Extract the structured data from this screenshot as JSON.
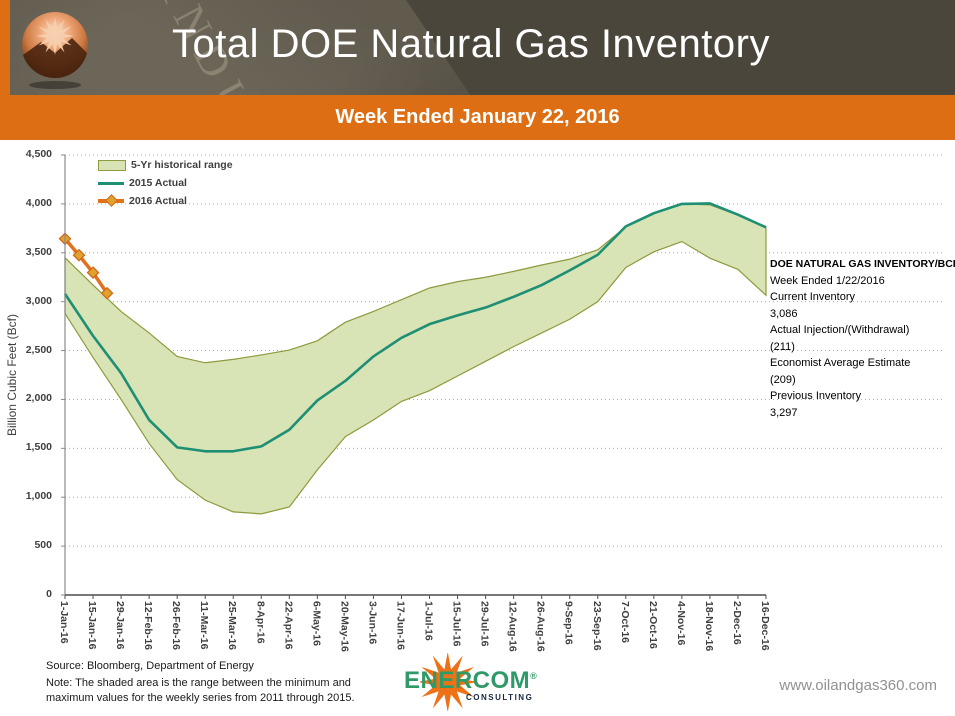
{
  "header": {
    "title": "Total DOE Natural Gas Inventory",
    "watermark": "INDUSTRY"
  },
  "subtitle_bar": {
    "text": "Week Ended January 22, 2016"
  },
  "chart_data": {
    "type": "area",
    "title": "Total DOE Natural Gas Inventory",
    "xlabel": "",
    "ylabel": "Billion Cubic Feet (Bcf)",
    "ylim": [
      0,
      4500
    ],
    "y_tick_step": 500,
    "y_tick_labels": [
      "0",
      "500",
      "1,000",
      "1,500",
      "2,000",
      "2,500",
      "3,000",
      "3,500",
      "4,000",
      "4,500"
    ],
    "grid": "dotted-horizontal",
    "legend_position": "top-left",
    "categories": [
      "1-Jan-16",
      "15-Jan-16",
      "29-Jan-16",
      "12-Feb-16",
      "26-Feb-16",
      "11-Mar-16",
      "25-Mar-16",
      "8-Apr-16",
      "22-Apr-16",
      "6-May-16",
      "20-May-16",
      "3-Jun-16",
      "17-Jun-16",
      "1-Jul-16",
      "15-Jul-16",
      "29-Jul-16",
      "12-Aug-16",
      "26-Aug-16",
      "9-Sep-16",
      "23-Sep-16",
      "7-Oct-16",
      "21-Oct-16",
      "4-Nov-16",
      "18-Nov-16",
      "2-Dec-16",
      "16-Dec-16"
    ],
    "series": [
      {
        "name": "5-Yr historical range",
        "type": "band",
        "fill": "#D8E4B5",
        "stroke": "#8E9A3C",
        "max": [
          3450,
          3170,
          2900,
          2680,
          2440,
          2375,
          2410,
          2455,
          2505,
          2600,
          2790,
          2900,
          3020,
          3140,
          3205,
          3250,
          3310,
          3375,
          3435,
          3530,
          3765,
          3900,
          4000,
          3990,
          3885,
          3755
        ],
        "min": [
          2880,
          2430,
          2000,
          1550,
          1180,
          970,
          850,
          830,
          900,
          1280,
          1620,
          1790,
          1980,
          2090,
          2240,
          2390,
          2540,
          2680,
          2820,
          3000,
          3350,
          3510,
          3615,
          3445,
          3330,
          3065
        ]
      },
      {
        "name": "2015 Actual",
        "type": "line",
        "color": "#1E8E74",
        "values": [
          3080,
          2650,
          2270,
          1790,
          1510,
          1470,
          1470,
          1520,
          1690,
          1990,
          2190,
          2440,
          2630,
          2770,
          2860,
          2940,
          3050,
          3170,
          3320,
          3480,
          3770,
          3905,
          4000,
          4005,
          3890,
          3760
        ]
      },
      {
        "name": "2016 Actual",
        "type": "line-markers",
        "color": "#E2711C",
        "marker_fill": "#DFA32B",
        "marker_stroke": "#D2691E",
        "x_index": [
          0,
          0.5,
          1,
          1.5
        ],
        "x_dates": [
          "1-Jan-16",
          "8-Jan-16",
          "15-Jan-16",
          "22-Jan-16"
        ],
        "values": [
          3643,
          3475,
          3297,
          3086
        ]
      }
    ]
  },
  "info_box": {
    "lines": [
      "DOE NATURAL GAS INVENTORY/BCF",
      "Week Ended 1/22/2016",
      "Current Inventory",
      "3,086",
      "Actual Injection/(Withdrawal)",
      "(211)",
      "Economist Average Estimate",
      "(209)",
      "Previous Inventory",
      "3,297"
    ]
  },
  "footer": {
    "source": "Source: Bloomberg, Department of Energy",
    "note": "Note: The shaded area is the range between the minimum and maximum values for the weekly series from 2011 through 2015.",
    "website": "www.oilandgas360.com",
    "logo": {
      "brand": "ENERCOM",
      "registered": "®",
      "sub": "CONSULTING"
    }
  }
}
